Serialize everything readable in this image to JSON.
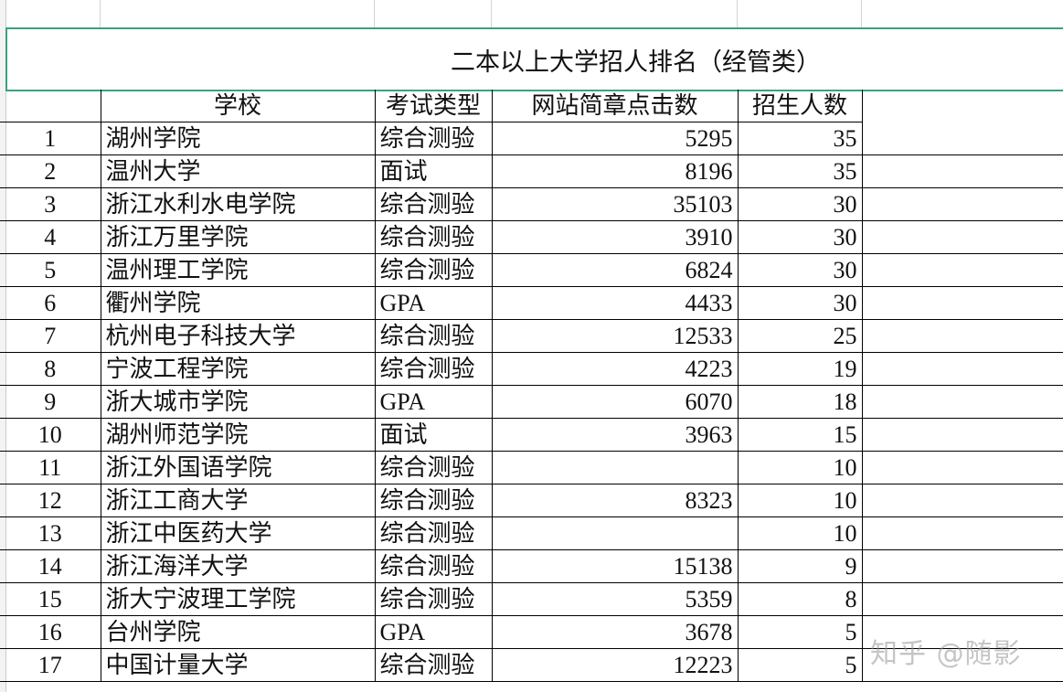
{
  "sheet": {
    "title": "二本以上大学招人排名（经管类）",
    "columns": [
      "",
      "学校",
      "考试类型",
      "网站简章点击数",
      "招生人数",
      ""
    ],
    "rows": [
      {
        "no": "1",
        "school": "湖州学院",
        "type": "综合测验",
        "clicks": "5295",
        "enroll": "35"
      },
      {
        "no": "2",
        "school": "温州大学",
        "type": "面试",
        "clicks": "8196",
        "enroll": "35"
      },
      {
        "no": "3",
        "school": "浙江水利水电学院",
        "type": "综合测验",
        "clicks": "35103",
        "enroll": "30"
      },
      {
        "no": "4",
        "school": "浙江万里学院",
        "type": "综合测验",
        "clicks": "3910",
        "enroll": "30"
      },
      {
        "no": "5",
        "school": "温州理工学院",
        "type": "综合测验",
        "clicks": "6824",
        "enroll": "30"
      },
      {
        "no": "6",
        "school": "衢州学院",
        "type": "GPA",
        "clicks": "4433",
        "enroll": "30"
      },
      {
        "no": "7",
        "school": "杭州电子科技大学",
        "type": "综合测验",
        "clicks": "12533",
        "enroll": "25"
      },
      {
        "no": "8",
        "school": "宁波工程学院",
        "type": "综合测验",
        "clicks": "4223",
        "enroll": "19"
      },
      {
        "no": "9",
        "school": "浙大城市学院",
        "type": "GPA",
        "clicks": "6070",
        "enroll": "18"
      },
      {
        "no": "10",
        "school": "湖州师范学院",
        "type": "面试",
        "clicks": "3963",
        "enroll": "15"
      },
      {
        "no": "11",
        "school": "浙江外国语学院",
        "type": "综合测验",
        "clicks": "",
        "enroll": "10"
      },
      {
        "no": "12",
        "school": "浙江工商大学",
        "type": "综合测验",
        "clicks": "8323",
        "enroll": "10"
      },
      {
        "no": "13",
        "school": "浙江中医药大学",
        "type": "综合测验",
        "clicks": "",
        "enroll": "10"
      },
      {
        "no": "14",
        "school": "浙江海洋大学",
        "type": "综合测验",
        "clicks": "15138",
        "enroll": "9"
      },
      {
        "no": "15",
        "school": "浙大宁波理工学院",
        "type": "综合测验",
        "clicks": "5359",
        "enroll": "8"
      },
      {
        "no": "16",
        "school": "台州学院",
        "type": "GPA",
        "clicks": "3678",
        "enroll": "5"
      },
      {
        "no": "17",
        "school": "中国计量大学",
        "type": "综合测验",
        "clicks": "12223",
        "enroll": "5"
      }
    ]
  },
  "watermark": "知乎 @随影",
  "colors": {
    "selection_border": "#3aa27a",
    "grid": "#d4d4d4",
    "border": "#000000"
  }
}
